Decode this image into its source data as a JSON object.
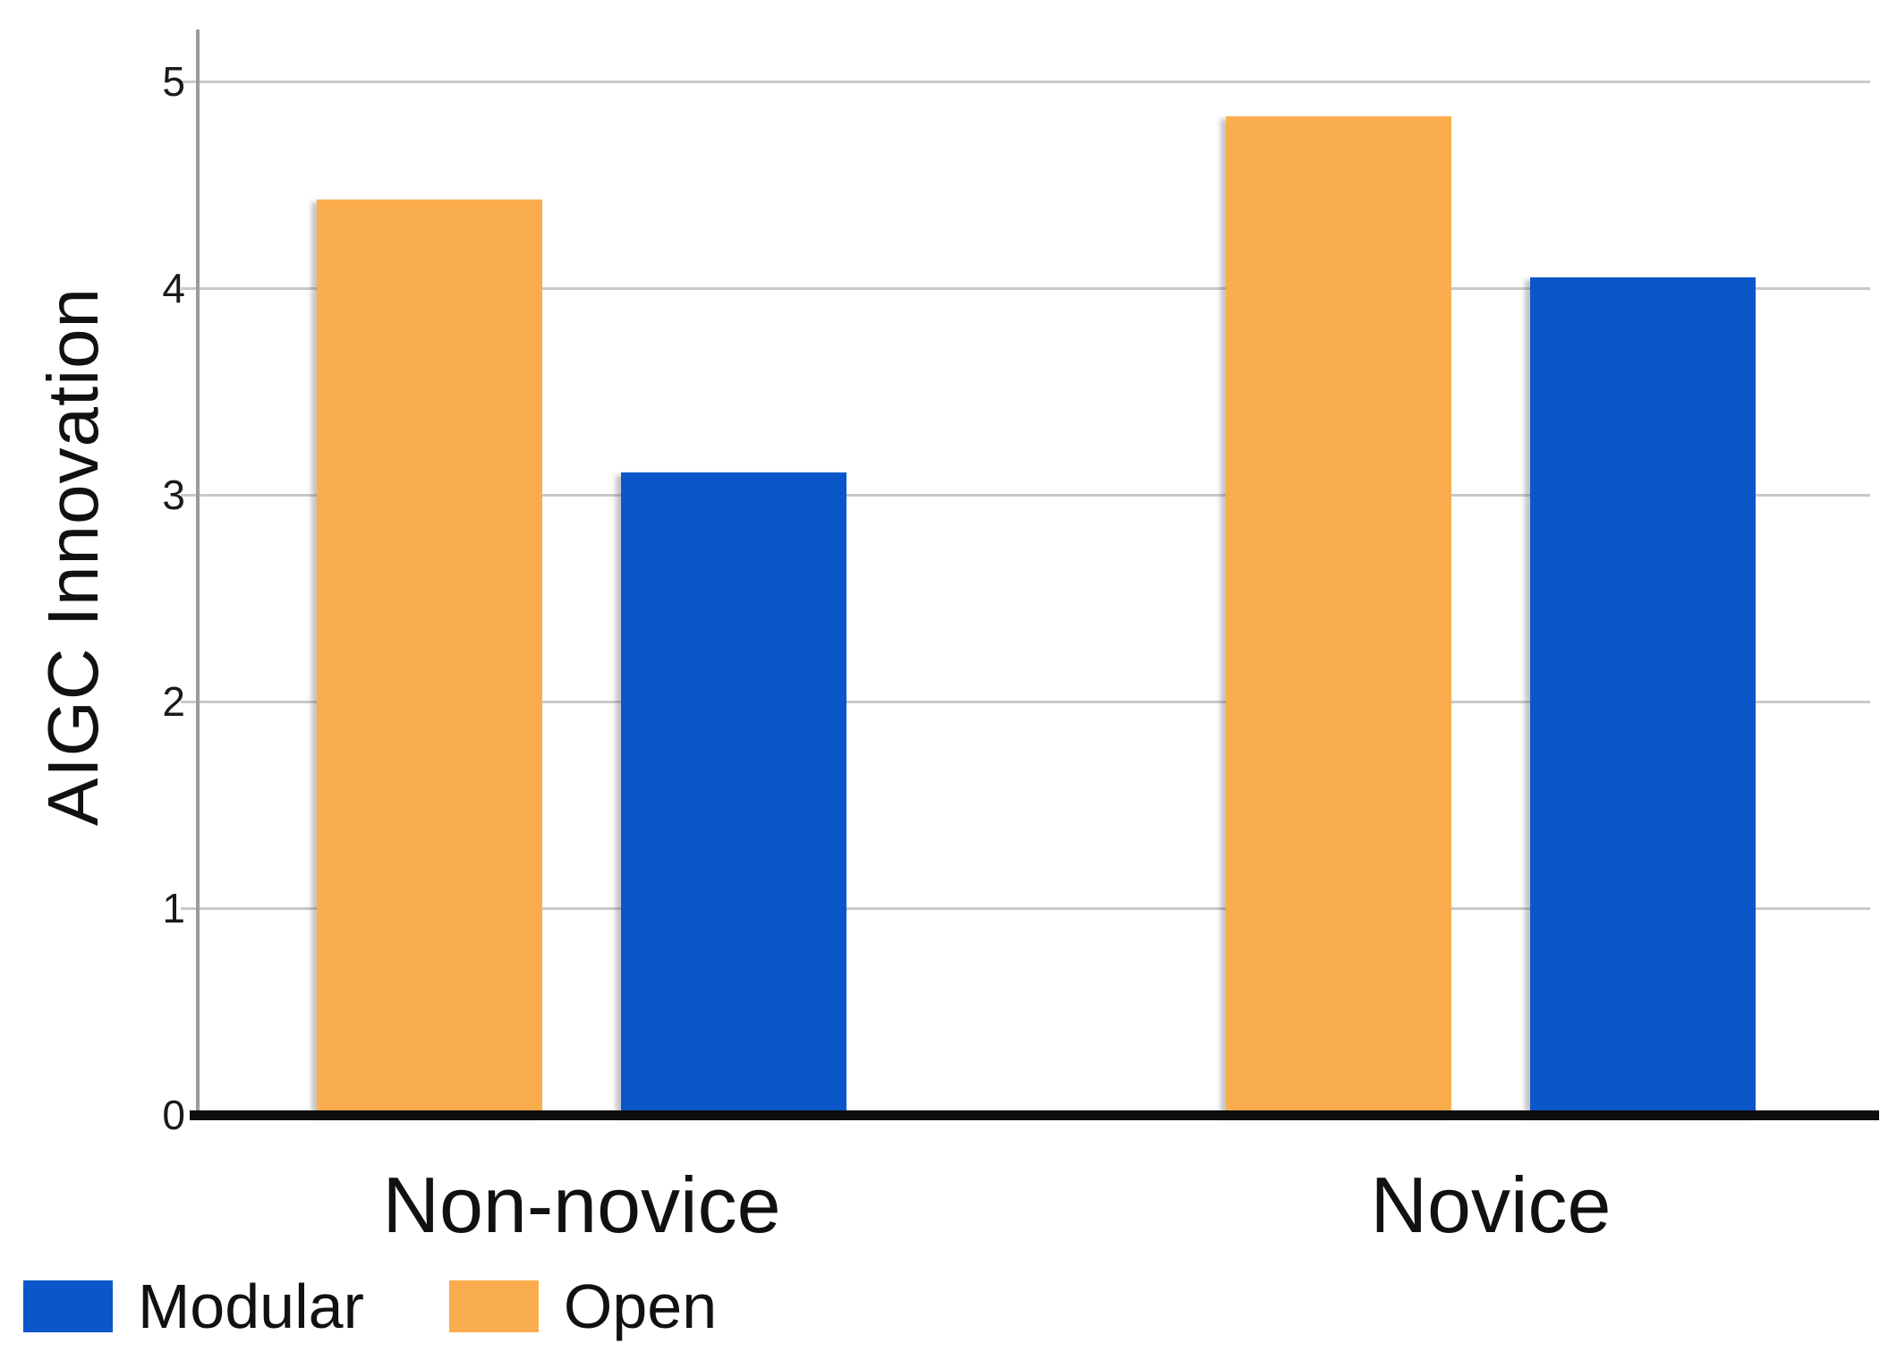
{
  "chart_data": {
    "type": "bar",
    "title": "",
    "xlabel": "",
    "ylabel": "AIGC Innovation",
    "categories": [
      "Non-novice",
      "Novice"
    ],
    "series": [
      {
        "name": "Open",
        "color": "#FAAD4D",
        "values": [
          4.43,
          4.83
        ]
      },
      {
        "name": "Modular",
        "color": "#0B57C9",
        "values": [
          3.11,
          4.05
        ]
      }
    ],
    "ylim": [
      0,
      5
    ],
    "yticks": [
      0,
      1,
      2,
      3,
      4,
      5
    ],
    "grid": true,
    "legend": {
      "position": "bottom-left",
      "items": [
        {
          "label": "Modular",
          "color": "#0B57C9"
        },
        {
          "label": "Open",
          "color": "#FAAD4D"
        }
      ]
    },
    "colors": {
      "axis": "#9b9b9b",
      "baseline": "#0d0d0d",
      "gridline": "#c9c9c9",
      "text": "#111111"
    }
  }
}
